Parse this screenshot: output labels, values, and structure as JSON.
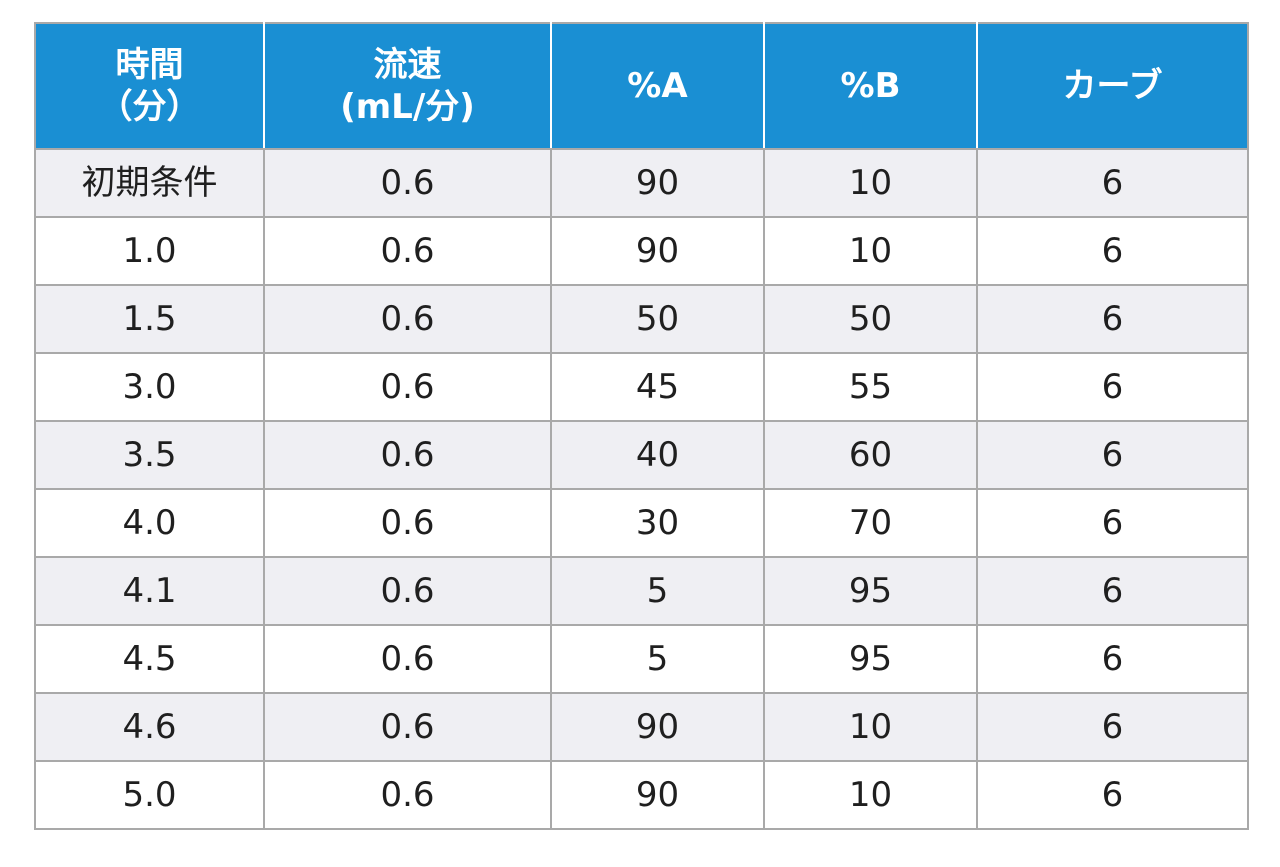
{
  "table": {
    "headers": [
      {
        "lines": [
          "時間",
          "（分）"
        ]
      },
      {
        "lines": [
          "流速",
          "(mL/分)"
        ]
      },
      {
        "lines": [
          "%A"
        ]
      },
      {
        "lines": [
          "%B"
        ]
      },
      {
        "lines": [
          "カーブ"
        ]
      }
    ],
    "rows": [
      [
        "初期条件",
        "0.6",
        "90",
        "10",
        "6"
      ],
      [
        "1.0",
        "0.6",
        "90",
        "10",
        "6"
      ],
      [
        "1.5",
        "0.6",
        "50",
        "50",
        "6"
      ],
      [
        "3.0",
        "0.6",
        "45",
        "55",
        "6"
      ],
      [
        "3.5",
        "0.6",
        "40",
        "60",
        "6"
      ],
      [
        "4.0",
        "0.6",
        "30",
        "70",
        "6"
      ],
      [
        "4.1",
        "0.6",
        "5",
        "95",
        "6"
      ],
      [
        "4.5",
        "0.6",
        "5",
        "95",
        "6"
      ],
      [
        "4.6",
        "0.6",
        "90",
        "10",
        "6"
      ],
      [
        "5.0",
        "0.6",
        "90",
        "10",
        "6"
      ]
    ]
  },
  "colors": {
    "header_bg": "#1a8fd3",
    "header_text": "#ffffff",
    "row_alt_bg": "#efeff3",
    "row_bg": "#ffffff",
    "border": "#a9a9a9"
  }
}
